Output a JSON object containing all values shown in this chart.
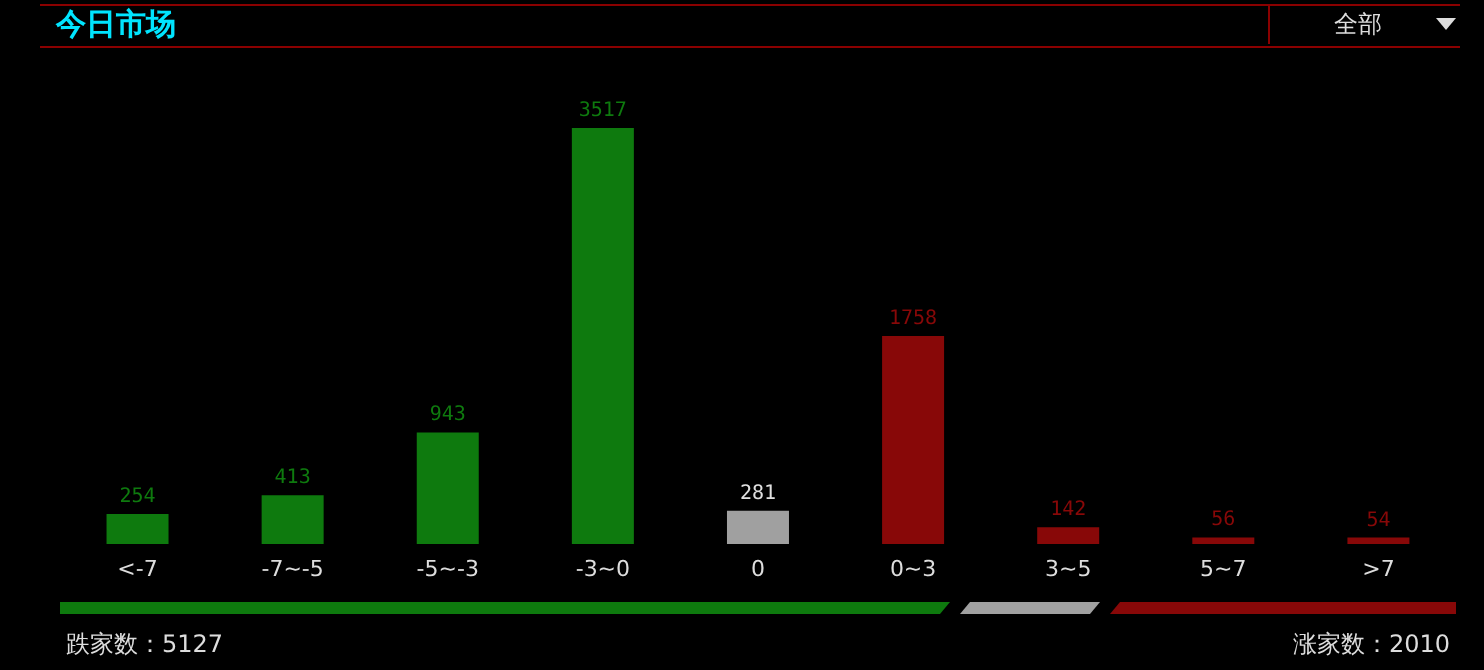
{
  "chart_data": {
    "type": "bar",
    "title": "今日市场",
    "categories": [
      "<-7",
      "-7~-5",
      "-5~-3",
      "-3~0",
      "0",
      "0~3",
      "3~5",
      "5~7",
      ">7"
    ],
    "values": [
      254,
      413,
      943,
      3517,
      281,
      1758,
      142,
      56,
      54
    ],
    "colors": [
      "#0e7a0e",
      "#0e7a0e",
      "#0e7a0e",
      "#0e7a0e",
      "#a0a0a0",
      "#880808",
      "#880808",
      "#880808",
      "#880808"
    ],
    "data_labels": true,
    "annotations": [
      "全部",
      "跌家数：5127",
      "涨家数：2010"
    ]
  }
}
